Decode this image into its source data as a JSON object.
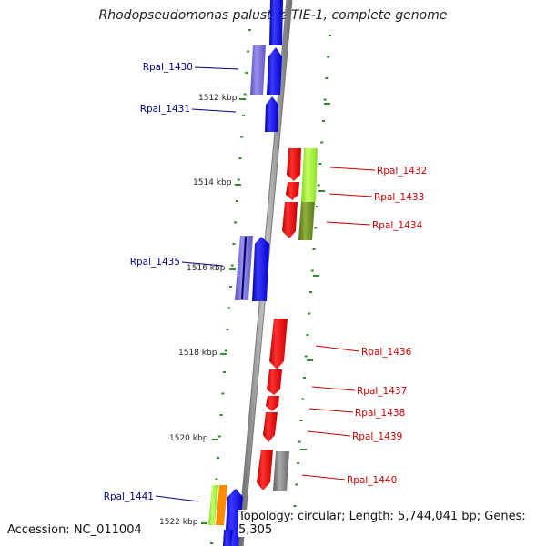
{
  "title": "Rhodopseudomonas palustris TIE-1, complete genome",
  "footer": {
    "accession": "Accession: NC_011004",
    "topology": "Topology: circular; Length: 5,744,041 bp; Genes: 5,305"
  },
  "ticks": [
    {
      "label": "1512 kbp"
    },
    {
      "label": "1514 kbp"
    },
    {
      "label": "1516 kbp"
    },
    {
      "label": "1518 kbp"
    },
    {
      "label": "1520 kbp"
    },
    {
      "label": "1522 kbp"
    }
  ],
  "genes": [
    {
      "name": "Rpal_1430",
      "strand": "reverse",
      "color": "#00008b"
    },
    {
      "name": "Rpal_1431",
      "strand": "reverse",
      "color": "#00008b"
    },
    {
      "name": "Rpal_1432",
      "strand": "forward",
      "color": "#cc0000"
    },
    {
      "name": "Rpal_1433",
      "strand": "forward",
      "color": "#cc0000"
    },
    {
      "name": "Rpal_1434",
      "strand": "forward",
      "color": "#cc0000"
    },
    {
      "name": "Rpal_1435",
      "strand": "reverse",
      "color": "#00008b"
    },
    {
      "name": "Rpal_1436",
      "strand": "forward",
      "color": "#cc0000"
    },
    {
      "name": "Rpal_1437",
      "strand": "forward",
      "color": "#cc0000"
    },
    {
      "name": "Rpal_1438",
      "strand": "forward",
      "color": "#cc0000"
    },
    {
      "name": "Rpal_1439",
      "strand": "forward",
      "color": "#cc0000"
    },
    {
      "name": "Rpal_1440",
      "strand": "forward",
      "color": "#cc0000"
    },
    {
      "name": "Rpal_1441",
      "strand": "reverse",
      "color": "#00008b"
    }
  ],
  "colors": {
    "forward_gene": "#ff0000",
    "reverse_gene": "#0000ff",
    "cog_purple": "#7a6fd6",
    "cog_green": "#a6ff33",
    "cog_olive": "#6b8e23",
    "cog_gray": "#888888",
    "backbone": "#8c8c8c",
    "tick_marks": "#2e8b2e"
  }
}
